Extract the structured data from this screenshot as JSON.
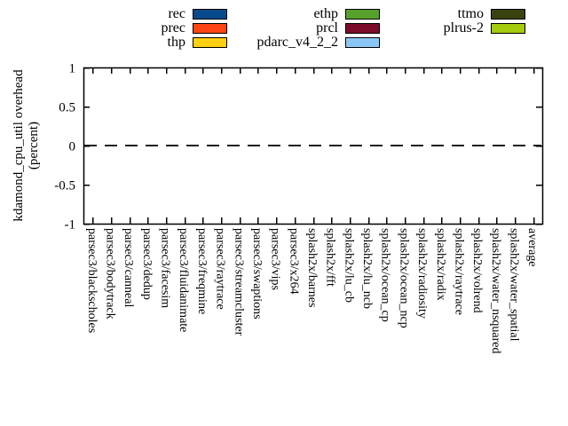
{
  "legend": {
    "columns": [
      {
        "items": [
          {
            "label": "rec",
            "color": "#084a8b"
          },
          {
            "label": "prec",
            "color": "#fc4513"
          },
          {
            "label": "thp",
            "color": "#ffd012"
          }
        ]
      },
      {
        "items": [
          {
            "label": "ethp",
            "color": "#56a12c"
          },
          {
            "label": "prcl",
            "color": "#7d0c2a"
          },
          {
            "label": "pdarc_v4_2_2",
            "color": "#8bc7f6"
          }
        ]
      },
      {
        "items": [
          {
            "label": "ttmo",
            "color": "#384310"
          },
          {
            "label": "plrus-2",
            "color": "#a4cb0c"
          }
        ]
      }
    ]
  },
  "chart_data": {
    "type": "bar",
    "title": "",
    "ylabel": "kdamond_cpu_util overhead",
    "ylabel_line2": "(percent)",
    "ylim": [
      -1,
      1
    ],
    "yticks": [
      1,
      0.5,
      0,
      -0.5,
      -1
    ],
    "grid": false,
    "zero_line": "dashed",
    "legend_position": "top",
    "categories": [
      "parsec3/blackscholes",
      "parsec3/bodytrack",
      "parsec3/canneal",
      "parsec3/dedup",
      "parsec3/facesim",
      "parsec3/fluidanimate",
      "parsec3/freqmine",
      "parsec3/raytrace",
      "parsec3/streamcluster",
      "parsec3/swaptions",
      "parsec3/vips",
      "parsec3/x264",
      "splash2x/barnes",
      "splash2x/fft",
      "splash2x/lu_cb",
      "splash2x/lu_ncb",
      "splash2x/ocean_cp",
      "splash2x/ocean_ncp",
      "splash2x/radiosity",
      "splash2x/radix",
      "splash2x/raytrace",
      "splash2x/volrend",
      "splash2x/water_nsquared",
      "splash2x/water_spatial",
      "average"
    ],
    "series": [
      {
        "name": "rec",
        "color": "#084a8b",
        "values": [
          0,
          0,
          0,
          0,
          0,
          0,
          0,
          0,
          0,
          0,
          0,
          0,
          0,
          0,
          0,
          0,
          0,
          0,
          0,
          0,
          0,
          0,
          0,
          0,
          0
        ]
      },
      {
        "name": "prec",
        "color": "#fc4513",
        "values": [
          0,
          0,
          0,
          0,
          0,
          0,
          0,
          0,
          0,
          0,
          0,
          0,
          0,
          0,
          0,
          0,
          0,
          0,
          0,
          0,
          0,
          0,
          0,
          0,
          0
        ]
      },
      {
        "name": "thp",
        "color": "#ffd012",
        "values": [
          0,
          0,
          0,
          0,
          0,
          0,
          0,
          0,
          0,
          0,
          0,
          0,
          0,
          0,
          0,
          0,
          0,
          0,
          0,
          0,
          0,
          0,
          0,
          0,
          0
        ]
      },
      {
        "name": "ethp",
        "color": "#56a12c",
        "values": [
          0,
          0,
          0,
          0,
          0,
          0,
          0,
          0,
          0,
          0,
          0,
          0,
          0,
          0,
          0,
          0,
          0,
          0,
          0,
          0,
          0,
          0,
          0,
          0,
          0
        ]
      },
      {
        "name": "prcl",
        "color": "#7d0c2a",
        "values": [
          0,
          0,
          0,
          0,
          0,
          0,
          0,
          0,
          0,
          0,
          0,
          0,
          0,
          0,
          0,
          0,
          0,
          0,
          0,
          0,
          0,
          0,
          0,
          0,
          0
        ]
      },
      {
        "name": "pdarc_v4_2_2",
        "color": "#8bc7f6",
        "values": [
          0,
          0,
          0,
          0,
          0,
          0,
          0,
          0,
          0,
          0,
          0,
          0,
          0,
          0,
          0,
          0,
          0,
          0,
          0,
          0,
          0,
          0,
          0,
          0,
          0
        ]
      },
      {
        "name": "ttmo",
        "color": "#384310",
        "values": [
          0,
          0,
          0,
          0,
          0,
          0,
          0,
          0,
          0,
          0,
          0,
          0,
          0,
          0,
          0,
          0,
          0,
          0,
          0,
          0,
          0,
          0,
          0,
          0,
          0
        ]
      },
      {
        "name": "plrus-2",
        "color": "#a4cb0c",
        "values": [
          0,
          0,
          0,
          0,
          0,
          0,
          0,
          0,
          0,
          0,
          0,
          0,
          0,
          0,
          0,
          0,
          0,
          0,
          0,
          0,
          0,
          0,
          0,
          0,
          0
        ]
      }
    ]
  }
}
